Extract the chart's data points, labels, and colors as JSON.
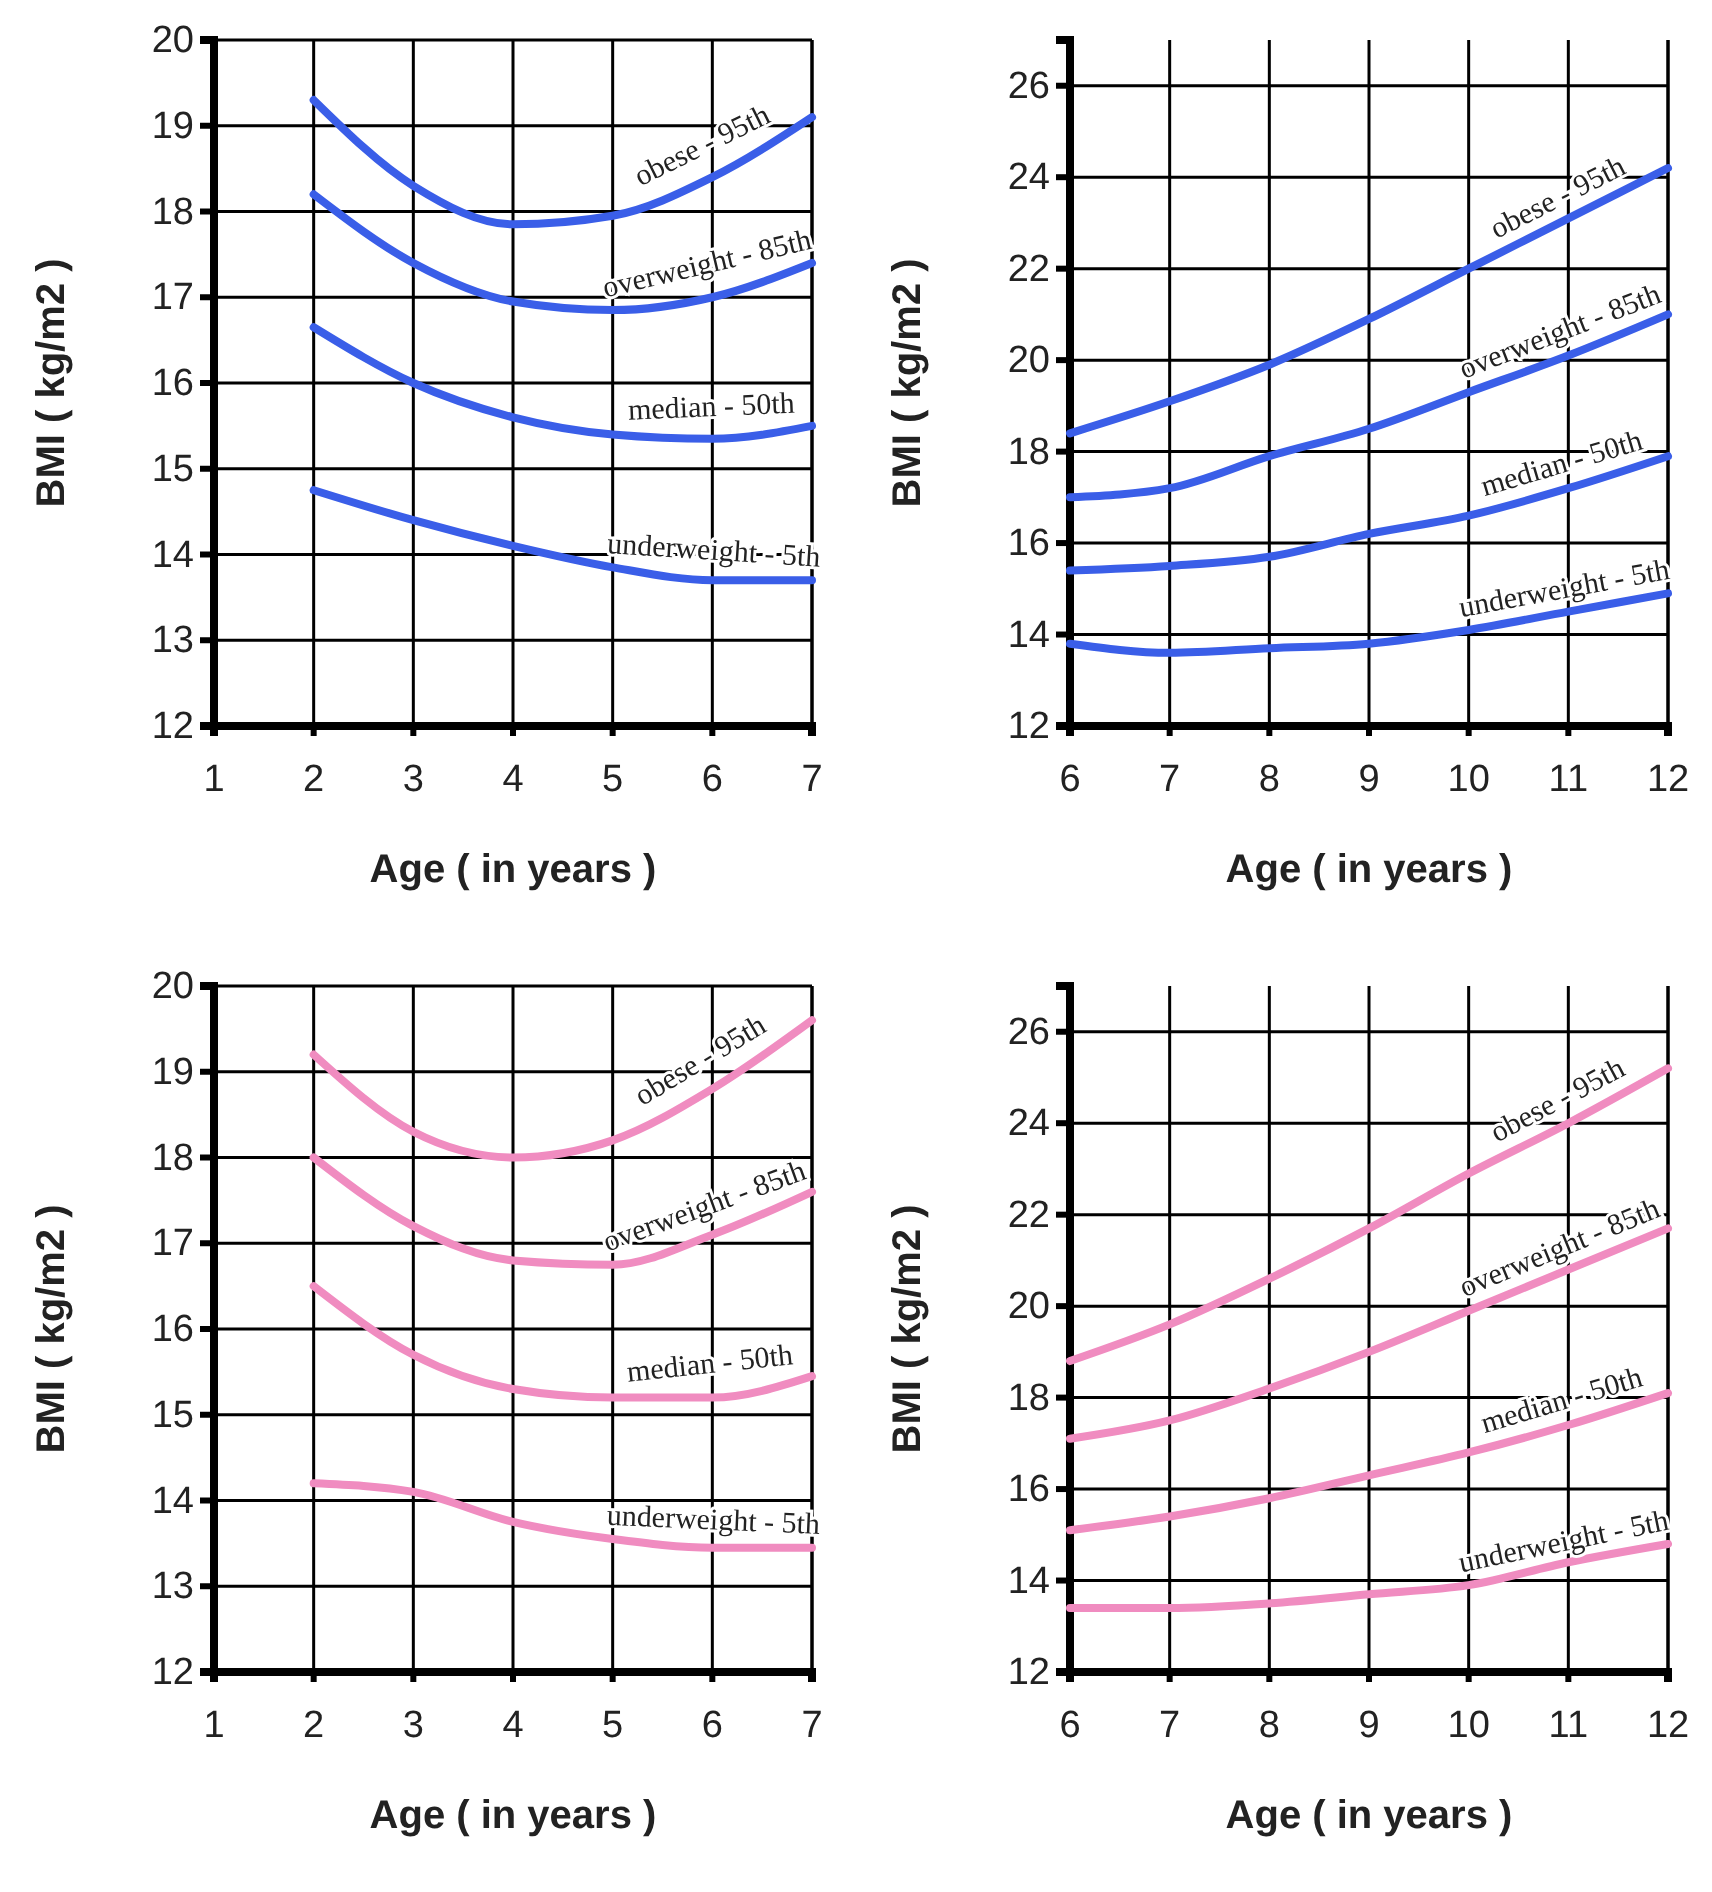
{
  "chart_data": [
    {
      "type": "line",
      "xlabel": "Age ( in years )",
      "ylabel": "BMI ( kg/m2 )",
      "xlim": [
        1,
        7
      ],
      "xticks": [
        1,
        2,
        3,
        4,
        5,
        6,
        7
      ],
      "ylim": [
        12,
        20
      ],
      "yticks": [
        12,
        13,
        14,
        15,
        16,
        17,
        18,
        19,
        20
      ],
      "grid": true,
      "marker": "none",
      "line_style": "solid",
      "x": [
        2,
        3,
        4,
        5,
        6,
        7
      ],
      "series": [
        {
          "name": "obese - 95th",
          "color": "#3a5ee8",
          "values": [
            19.3,
            18.3,
            17.85,
            17.95,
            18.4,
            19.1
          ]
        },
        {
          "name": "overweight - 85th",
          "color": "#3a5ee8",
          "values": [
            18.2,
            17.4,
            16.95,
            16.85,
            17.0,
            17.4
          ]
        },
        {
          "name": "median - 50th",
          "color": "#3a5ee8",
          "values": [
            16.65,
            16.0,
            15.6,
            15.4,
            15.35,
            15.5
          ]
        },
        {
          "name": "underweight - 5th",
          "color": "#3a5ee8",
          "values": [
            14.75,
            14.4,
            14.1,
            13.85,
            13.7,
            13.7
          ]
        }
      ]
    },
    {
      "type": "line",
      "xlabel": "Age ( in years )",
      "ylabel": "BMI ( kg/m2 )",
      "xlim": [
        6,
        12
      ],
      "xticks": [
        6,
        7,
        8,
        9,
        10,
        11,
        12
      ],
      "ylim": [
        12,
        27
      ],
      "yticks": [
        12,
        14,
        16,
        18,
        20,
        22,
        24,
        26
      ],
      "grid": true,
      "marker": "none",
      "line_style": "solid",
      "x": [
        6,
        7,
        8,
        9,
        10,
        11,
        12
      ],
      "series": [
        {
          "name": "obese - 95th",
          "color": "#3a5ee8",
          "values": [
            18.4,
            19.1,
            19.9,
            20.9,
            22.0,
            23.1,
            24.2
          ]
        },
        {
          "name": "overweight - 85th",
          "color": "#3a5ee8",
          "values": [
            17.0,
            17.2,
            17.9,
            18.5,
            19.3,
            20.1,
            21.0
          ]
        },
        {
          "name": "median - 50th",
          "color": "#3a5ee8",
          "values": [
            15.4,
            15.5,
            15.7,
            16.2,
            16.6,
            17.2,
            17.9
          ]
        },
        {
          "name": "underweight - 5th",
          "color": "#3a5ee8",
          "values": [
            13.8,
            13.6,
            13.7,
            13.8,
            14.1,
            14.5,
            14.9
          ]
        }
      ]
    },
    {
      "type": "line",
      "xlabel": "Age ( in years )",
      "ylabel": "BMI ( kg/m2 )",
      "xlim": [
        1,
        7
      ],
      "xticks": [
        1,
        2,
        3,
        4,
        5,
        6,
        7
      ],
      "ylim": [
        12,
        20
      ],
      "yticks": [
        12,
        13,
        14,
        15,
        16,
        17,
        18,
        19,
        20
      ],
      "grid": true,
      "marker": "none",
      "line_style": "solid",
      "x": [
        2,
        3,
        4,
        5,
        6,
        7
      ],
      "series": [
        {
          "name": "obese - 95th",
          "color": "#f08cc0",
          "values": [
            19.2,
            18.3,
            18.0,
            18.2,
            18.8,
            19.6
          ]
        },
        {
          "name": "overweight - 85th",
          "color": "#f08cc0",
          "values": [
            18.0,
            17.2,
            16.8,
            16.75,
            17.1,
            17.6
          ]
        },
        {
          "name": "median - 50th",
          "color": "#f08cc0",
          "values": [
            16.5,
            15.7,
            15.3,
            15.2,
            15.2,
            15.45
          ]
        },
        {
          "name": "underweight - 5th",
          "color": "#f08cc0",
          "values": [
            14.2,
            14.1,
            13.75,
            13.55,
            13.45,
            13.45
          ]
        }
      ]
    },
    {
      "type": "line",
      "xlabel": "Age ( in years )",
      "ylabel": "BMI ( kg/m2 )",
      "xlim": [
        6,
        12
      ],
      "xticks": [
        6,
        7,
        8,
        9,
        10,
        11,
        12
      ],
      "ylim": [
        12,
        27
      ],
      "yticks": [
        12,
        14,
        16,
        18,
        20,
        22,
        24,
        26
      ],
      "grid": true,
      "marker": "none",
      "line_style": "solid",
      "x": [
        6,
        7,
        8,
        9,
        10,
        11,
        12
      ],
      "series": [
        {
          "name": "obese - 95th",
          "color": "#f08cc0",
          "values": [
            18.8,
            19.6,
            20.6,
            21.7,
            22.9,
            24.0,
            25.2
          ]
        },
        {
          "name": "overweight - 85th",
          "color": "#f08cc0",
          "values": [
            17.1,
            17.5,
            18.2,
            19.0,
            19.9,
            20.8,
            21.7
          ]
        },
        {
          "name": "median - 50th",
          "color": "#f08cc0",
          "values": [
            15.1,
            15.4,
            15.8,
            16.3,
            16.8,
            17.4,
            18.1
          ]
        },
        {
          "name": "underweight - 5th",
          "color": "#f08cc0",
          "values": [
            13.4,
            13.4,
            13.5,
            13.7,
            13.9,
            14.4,
            14.8
          ]
        }
      ]
    }
  ]
}
